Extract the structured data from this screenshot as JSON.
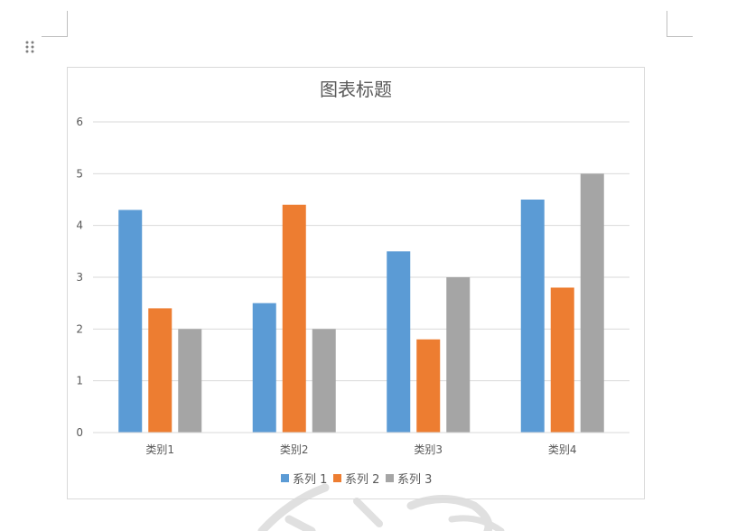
{
  "chart_data": {
    "type": "bar",
    "title": "图表标题",
    "categories": [
      "类别1",
      "类别2",
      "类别3",
      "类别4"
    ],
    "series": [
      {
        "name": "系列 1",
        "color": "#5b9bd5",
        "values": [
          4.3,
          2.5,
          3.5,
          4.5
        ]
      },
      {
        "name": "系列 2",
        "color": "#ed7d31",
        "values": [
          2.4,
          4.4,
          1.8,
          2.8
        ]
      },
      {
        "name": "系列 3",
        "color": "#a5a5a5",
        "values": [
          2,
          2,
          3,
          5
        ]
      }
    ],
    "ylim": [
      0,
      6
    ],
    "yticks": [
      "0",
      "1",
      "2",
      "3",
      "4",
      "5",
      "6"
    ],
    "grid": true,
    "legend": "bottom"
  },
  "icons": {
    "drag_handle": "drag-handle-icon"
  }
}
